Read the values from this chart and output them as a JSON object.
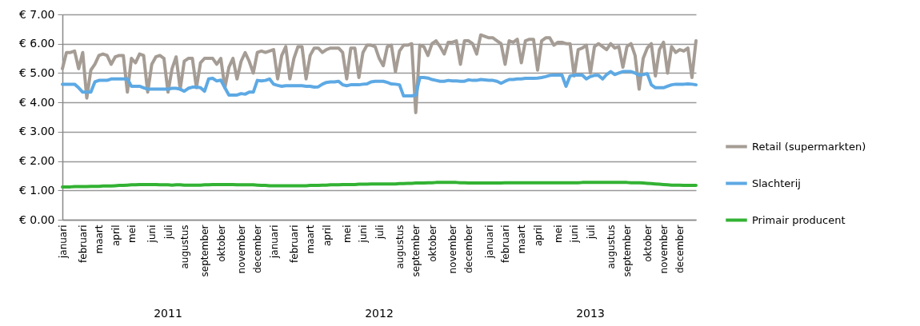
{
  "chart_data": {
    "type": "line",
    "x": [
      "2011-01-03",
      "2011-01-10",
      "2011-01-17",
      "2011-01-24",
      "2011-01-31",
      "2011-02-07",
      "2011-02-14",
      "2011-02-21",
      "2011-02-28",
      "2011-03-07",
      "2011-03-14",
      "2011-03-21",
      "2011-03-28",
      "2011-04-04",
      "2011-04-11",
      "2011-04-18",
      "2011-04-25",
      "2011-05-02",
      "2011-05-09",
      "2011-05-16",
      "2011-05-23",
      "2011-05-30",
      "2011-06-06",
      "2011-06-13",
      "2011-06-20",
      "2011-06-27",
      "2011-07-04",
      "2011-07-11",
      "2011-07-18",
      "2011-07-25",
      "2011-08-01",
      "2011-08-08",
      "2011-08-15",
      "2011-08-22",
      "2011-08-29",
      "2011-09-05",
      "2011-09-12",
      "2011-09-19",
      "2011-09-26",
      "2011-10-03",
      "2011-10-10",
      "2011-10-17",
      "2011-10-24",
      "2011-10-31",
      "2011-11-07",
      "2011-11-14",
      "2011-11-21",
      "2011-11-28",
      "2011-12-05",
      "2011-12-12",
      "2011-12-19",
      "2011-12-26",
      "2012-01-02",
      "2012-01-09",
      "2012-01-16",
      "2012-01-23",
      "2012-01-30",
      "2012-02-06",
      "2012-02-13",
      "2012-02-20",
      "2012-02-27",
      "2012-03-05",
      "2012-03-12",
      "2012-03-19",
      "2012-03-26",
      "2012-04-02",
      "2012-04-09",
      "2012-04-16",
      "2012-04-23",
      "2012-04-30",
      "2012-05-07",
      "2012-05-14",
      "2012-05-21",
      "2012-05-28",
      "2012-06-04",
      "2012-06-11",
      "2012-06-18",
      "2012-06-25",
      "2012-07-02",
      "2012-07-09",
      "2012-07-16",
      "2012-07-23",
      "2012-07-30",
      "2012-08-06",
      "2012-08-13",
      "2012-08-20",
      "2012-08-27",
      "2012-09-03",
      "2012-09-10",
      "2012-09-17",
      "2012-09-24",
      "2012-10-01",
      "2012-10-08",
      "2012-10-15",
      "2012-10-22",
      "2012-10-29",
      "2012-11-05",
      "2012-11-12",
      "2012-11-19",
      "2012-11-26",
      "2012-12-03",
      "2012-12-10",
      "2012-12-17",
      "2012-12-24",
      "2013-01-07",
      "2013-01-14",
      "2013-01-21",
      "2013-01-28",
      "2013-02-04",
      "2013-02-11",
      "2013-02-18",
      "2013-02-25",
      "2013-03-04",
      "2013-03-11",
      "2013-03-18",
      "2013-03-25",
      "2013-04-01",
      "2013-04-08",
      "2013-04-15",
      "2013-04-22",
      "2013-04-29",
      "2013-05-06",
      "2013-05-13",
      "2013-05-20",
      "2013-05-27",
      "2013-06-03",
      "2013-06-10",
      "2013-06-17",
      "2013-06-24",
      "2013-07-01",
      "2013-07-08",
      "2013-07-15",
      "2013-07-22",
      "2013-07-29",
      "2013-08-05",
      "2013-08-12",
      "2013-08-19",
      "2013-08-26",
      "2013-09-02",
      "2013-09-09",
      "2013-09-16",
      "2013-09-23",
      "2013-09-30",
      "2013-10-07",
      "2013-10-14",
      "2013-10-21",
      "2013-10-28",
      "2013-11-04",
      "2013-11-11",
      "2013-11-18",
      "2013-11-25",
      "2013-12-02",
      "2013-12-09",
      "2013-12-16",
      "2013-12-23",
      "2013-12-30"
    ],
    "series": [
      {
        "name": "Retail (supermarkten)",
        "color": "#a59d95",
        "values": [
          5.15,
          5.7,
          5.7,
          5.75,
          5.15,
          5.7,
          4.15,
          5.1,
          5.3,
          5.6,
          5.65,
          5.6,
          5.3,
          5.55,
          5.6,
          5.6,
          4.35,
          5.5,
          5.35,
          5.65,
          5.6,
          4.35,
          5.3,
          5.55,
          5.6,
          5.5,
          4.35,
          5.15,
          5.55,
          4.45,
          5.4,
          5.5,
          5.5,
          4.5,
          5.35,
          5.5,
          5.5,
          5.5,
          5.3,
          5.5,
          4.5,
          5.2,
          5.5,
          4.8,
          5.4,
          5.7,
          5.4,
          5.0,
          5.7,
          5.75,
          5.7,
          5.75,
          5.8,
          4.8,
          5.6,
          5.9,
          4.8,
          5.5,
          5.9,
          5.9,
          4.8,
          5.6,
          5.85,
          5.85,
          5.7,
          5.8,
          5.85,
          5.85,
          5.85,
          5.7,
          4.8,
          5.85,
          5.85,
          4.85,
          5.7,
          5.95,
          5.95,
          5.9,
          5.5,
          5.25,
          5.9,
          5.95,
          5.05,
          5.75,
          5.95,
          5.95,
          6.0,
          3.65,
          5.95,
          5.9,
          5.6,
          6.0,
          6.1,
          5.9,
          5.65,
          6.05,
          6.05,
          6.1,
          5.3,
          6.1,
          6.1,
          6.0,
          5.65,
          6.3,
          6.2,
          6.2,
          6.1,
          6.0,
          5.3,
          6.1,
          6.05,
          6.15,
          5.35,
          6.1,
          6.15,
          6.15,
          5.1,
          6.1,
          6.2,
          6.2,
          5.95,
          6.05,
          6.05,
          6.0,
          6.0,
          4.9,
          5.8,
          5.85,
          5.95,
          5.0,
          5.9,
          6.0,
          5.9,
          5.8,
          6.0,
          5.85,
          5.9,
          5.2,
          5.9,
          6.0,
          5.6,
          4.45,
          5.5,
          5.85,
          6.0,
          4.9,
          5.8,
          6.05,
          5.0,
          5.9,
          5.7,
          5.8,
          5.75,
          5.85,
          4.85,
          6.1
        ]
      },
      {
        "name": "Slachterij",
        "color": "#5da9e4",
        "values": [
          4.62,
          4.62,
          4.62,
          4.62,
          4.5,
          4.35,
          4.35,
          4.35,
          4.7,
          4.75,
          4.75,
          4.75,
          4.8,
          4.8,
          4.8,
          4.8,
          4.8,
          4.55,
          4.55,
          4.55,
          4.5,
          4.45,
          4.45,
          4.45,
          4.45,
          4.45,
          4.45,
          4.48,
          4.48,
          4.45,
          4.38,
          4.48,
          4.52,
          4.52,
          4.5,
          4.38,
          4.8,
          4.82,
          4.73,
          4.76,
          4.5,
          4.25,
          4.25,
          4.25,
          4.3,
          4.28,
          4.35,
          4.35,
          4.75,
          4.73,
          4.75,
          4.8,
          4.62,
          4.58,
          4.55,
          4.57,
          4.57,
          4.57,
          4.57,
          4.57,
          4.55,
          4.55,
          4.52,
          4.53,
          4.62,
          4.68,
          4.7,
          4.7,
          4.72,
          4.6,
          4.57,
          4.6,
          4.6,
          4.6,
          4.62,
          4.63,
          4.7,
          4.72,
          4.72,
          4.72,
          4.68,
          4.63,
          4.62,
          4.6,
          4.22,
          4.22,
          4.22,
          4.25,
          4.85,
          4.85,
          4.83,
          4.78,
          4.75,
          4.72,
          4.72,
          4.75,
          4.73,
          4.73,
          4.72,
          4.72,
          4.77,
          4.75,
          4.75,
          4.78,
          4.75,
          4.75,
          4.72,
          4.65,
          4.72,
          4.78,
          4.78,
          4.8,
          4.8,
          4.82,
          4.82,
          4.82,
          4.83,
          4.85,
          4.88,
          4.92,
          4.93,
          4.93,
          4.93,
          4.55,
          4.9,
          4.93,
          4.93,
          4.93,
          4.8,
          4.88,
          4.92,
          4.92,
          4.8,
          4.95,
          5.05,
          4.95,
          5.0,
          5.05,
          5.05,
          5.05,
          5.0,
          4.93,
          4.95,
          4.98,
          4.6,
          4.5,
          4.5,
          4.5,
          4.55,
          4.6,
          4.62,
          4.62,
          4.62,
          4.63,
          4.62,
          4.6
        ]
      },
      {
        "name": "Primair producent",
        "color": "#33b233",
        "values": [
          1.12,
          1.12,
          1.12,
          1.13,
          1.13,
          1.13,
          1.13,
          1.14,
          1.14,
          1.14,
          1.15,
          1.15,
          1.15,
          1.16,
          1.17,
          1.17,
          1.18,
          1.19,
          1.19,
          1.2,
          1.2,
          1.2,
          1.2,
          1.2,
          1.19,
          1.19,
          1.19,
          1.18,
          1.19,
          1.19,
          1.18,
          1.18,
          1.18,
          1.18,
          1.18,
          1.19,
          1.19,
          1.2,
          1.2,
          1.2,
          1.2,
          1.2,
          1.2,
          1.19,
          1.19,
          1.19,
          1.19,
          1.19,
          1.18,
          1.17,
          1.17,
          1.16,
          1.16,
          1.16,
          1.16,
          1.16,
          1.16,
          1.16,
          1.16,
          1.16,
          1.16,
          1.17,
          1.17,
          1.17,
          1.18,
          1.18,
          1.19,
          1.19,
          1.19,
          1.2,
          1.2,
          1.2,
          1.2,
          1.21,
          1.21,
          1.21,
          1.22,
          1.22,
          1.22,
          1.22,
          1.22,
          1.22,
          1.22,
          1.23,
          1.23,
          1.24,
          1.24,
          1.25,
          1.25,
          1.25,
          1.26,
          1.26,
          1.27,
          1.27,
          1.27,
          1.27,
          1.27,
          1.27,
          1.26,
          1.26,
          1.25,
          1.25,
          1.25,
          1.25,
          1.25,
          1.25,
          1.25,
          1.25,
          1.26,
          1.26,
          1.26,
          1.26,
          1.26,
          1.26,
          1.26,
          1.26,
          1.26,
          1.26,
          1.26,
          1.26,
          1.26,
          1.26,
          1.26,
          1.26,
          1.26,
          1.26,
          1.26,
          1.27,
          1.27,
          1.27,
          1.27,
          1.27,
          1.27,
          1.27,
          1.27,
          1.27,
          1.27,
          1.27,
          1.27,
          1.26,
          1.26,
          1.26,
          1.25,
          1.24,
          1.23,
          1.22,
          1.21,
          1.2,
          1.19,
          1.18,
          1.18,
          1.18,
          1.17,
          1.17,
          1.17,
          1.17
        ]
      }
    ],
    "ylim": [
      0,
      7
    ],
    "yticks": [
      {
        "value": 0,
        "label": "€ 0.00"
      },
      {
        "value": 1,
        "label": "€ 1.00"
      },
      {
        "value": 2,
        "label": "€ 2.00"
      },
      {
        "value": 3,
        "label": "€ 3.00"
      },
      {
        "value": 4,
        "label": "€ 4.00"
      },
      {
        "value": 5,
        "label": "€ 5.00"
      },
      {
        "value": 6,
        "label": "€ 6.00"
      },
      {
        "value": 7,
        "label": "€ 7.00"
      }
    ],
    "xlim": [
      "2011-01-03",
      "2013-12-30"
    ],
    "xticks": [
      {
        "value": "2011-01-03",
        "label": "januari"
      },
      {
        "value": "2011-02-07",
        "label": "februari"
      },
      {
        "value": "2011-03-07",
        "label": "maart"
      },
      {
        "value": "2011-04-04",
        "label": "april"
      },
      {
        "value": "2011-05-02",
        "label": "mei"
      },
      {
        "value": "2011-06-06",
        "label": "juni"
      },
      {
        "value": "2011-07-04",
        "label": "juli"
      },
      {
        "value": "2011-08-01",
        "label": "augustus"
      },
      {
        "value": "2011-09-05",
        "label": "september"
      },
      {
        "value": "2011-10-03",
        "label": "oktober"
      },
      {
        "value": "2011-11-07",
        "label": "november"
      },
      {
        "value": "2011-12-05",
        "label": "december"
      },
      {
        "value": "2012-01-02",
        "label": "januari"
      },
      {
        "value": "2012-02-06",
        "label": "februari"
      },
      {
        "value": "2012-03-05",
        "label": "maart"
      },
      {
        "value": "2012-04-02",
        "label": "april"
      },
      {
        "value": "2012-05-07",
        "label": "mei"
      },
      {
        "value": "2012-06-04",
        "label": "juni"
      },
      {
        "value": "2012-07-02",
        "label": "juli"
      },
      {
        "value": "2012-08-06",
        "label": "augustus"
      },
      {
        "value": "2012-09-03",
        "label": "september"
      },
      {
        "value": "2012-10-01",
        "label": "oktober"
      },
      {
        "value": "2012-11-05",
        "label": "november"
      },
      {
        "value": "2012-12-03",
        "label": "december"
      },
      {
        "value": "2013-01-07",
        "label": "januari"
      },
      {
        "value": "2013-02-04",
        "label": "februari"
      },
      {
        "value": "2013-03-04",
        "label": "maart"
      },
      {
        "value": "2013-04-01",
        "label": "april"
      },
      {
        "value": "2013-05-06",
        "label": "mei"
      },
      {
        "value": "2013-06-03",
        "label": "juni"
      },
      {
        "value": "2013-07-01",
        "label": "juli"
      },
      {
        "value": "2013-08-05",
        "label": "augustus"
      },
      {
        "value": "2013-09-02",
        "label": "september"
      },
      {
        "value": "2013-10-07",
        "label": "oktober"
      },
      {
        "value": "2013-11-04",
        "label": "november"
      },
      {
        "value": "2013-12-02",
        "label": "december"
      }
    ],
    "annotations": [
      "2011",
      "2012",
      "2013"
    ],
    "grid": "y",
    "legend": "right",
    "marker": "none",
    "line_style": "solid"
  }
}
